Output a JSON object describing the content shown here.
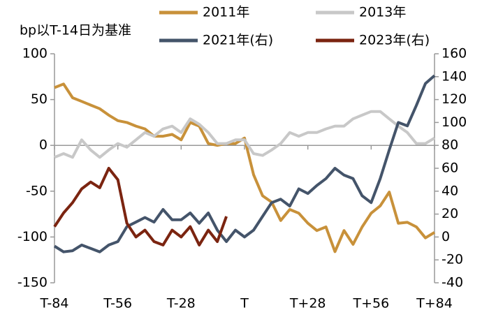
{
  "chart_data": {
    "type": "line",
    "y_label": "bp以T-14日为基准",
    "x": [
      -84,
      -80,
      -76,
      -72,
      -68,
      -64,
      -60,
      -56,
      -52,
      -48,
      -44,
      -40,
      -36,
      -32,
      -28,
      -24,
      -20,
      -16,
      -12,
      -8,
      -4,
      0,
      4,
      8,
      12,
      16,
      20,
      24,
      28,
      32,
      36,
      40,
      44,
      48,
      52,
      56,
      60,
      64,
      68,
      72,
      76,
      80,
      84
    ],
    "xlim": [
      -84,
      84
    ],
    "xticks": [
      {
        "value": -84,
        "label": "T-84"
      },
      {
        "value": -56,
        "label": "T-56"
      },
      {
        "value": -28,
        "label": "T-28"
      },
      {
        "value": 0,
        "label": "T"
      },
      {
        "value": 28,
        "label": "T+28"
      },
      {
        "value": 56,
        "label": "T+56"
      },
      {
        "value": 84,
        "label": "T+84"
      }
    ],
    "ylim": [
      -150,
      100
    ],
    "yticks": [
      -150,
      -100,
      -50,
      0,
      50,
      100
    ],
    "y2lim": [
      -40,
      160
    ],
    "y2ticks": [
      -40,
      -20,
      0,
      20,
      40,
      60,
      80,
      100,
      120,
      140,
      160
    ],
    "series": [
      {
        "name": "2011年",
        "color": "#c8913a",
        "axis": "y",
        "values": [
          63,
          67,
          52,
          48,
          44,
          40,
          33,
          27,
          25,
          21,
          18,
          10,
          10,
          12,
          6,
          25,
          21,
          2,
          0,
          2,
          2,
          8,
          -32,
          -55,
          -62,
          -82,
          -70,
          -74,
          -85,
          -93,
          -89,
          -116,
          -93,
          -108,
          -89,
          -74,
          -66,
          -51,
          -85,
          -84,
          -89,
          -101,
          -95
        ]
      },
      {
        "name": "2013年",
        "color": "#c8c8c8",
        "axis": "y",
        "values": [
          -13,
          -9,
          -13,
          6,
          -5,
          -13,
          -5,
          2,
          -2,
          6,
          14,
          10,
          18,
          21,
          14,
          29,
          23,
          14,
          2,
          2,
          6,
          6,
          -9,
          -11,
          -5,
          2,
          14,
          10,
          14,
          14,
          18,
          21,
          21,
          29,
          33,
          37,
          37,
          29,
          21,
          14,
          2,
          2,
          8
        ]
      },
      {
        "name": "2021年(右)",
        "color": "#44546a",
        "axis": "y2",
        "values": [
          -8,
          -13,
          -12,
          -7,
          -10,
          -13,
          -7,
          -4,
          9,
          13,
          17,
          13,
          24,
          15,
          15,
          21,
          12,
          21,
          6,
          -4,
          6,
          0,
          6,
          18,
          30,
          33,
          27,
          42,
          38,
          45,
          51,
          60,
          54,
          51,
          36,
          30,
          51,
          76,
          100,
          97,
          115,
          134,
          141
        ]
      },
      {
        "name": "2023年(右)",
        "color": "#7b2410",
        "axis": "y2",
        "values": [
          9,
          21,
          30,
          42,
          48,
          43,
          60,
          50,
          12,
          0,
          6,
          -4,
          -7,
          6,
          0,
          9,
          -7,
          6,
          -4,
          18,
          null,
          null,
          null,
          null,
          null,
          null,
          null,
          null,
          null,
          null,
          null,
          null,
          null,
          null,
          null,
          null,
          null,
          null,
          null,
          null,
          null,
          null,
          null
        ]
      }
    ]
  }
}
